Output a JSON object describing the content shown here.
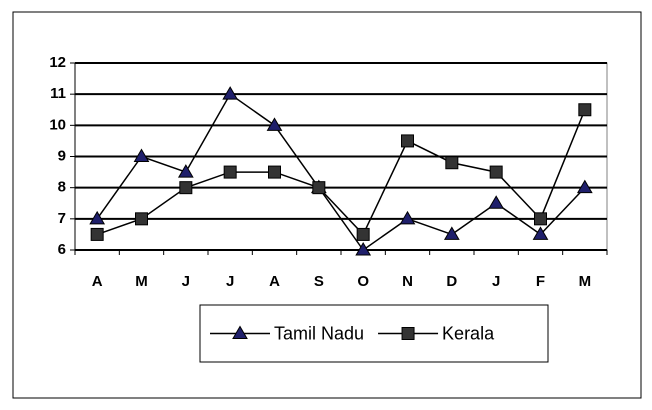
{
  "chart_data": {
    "type": "line",
    "categories": [
      "A",
      "M",
      "J",
      "J",
      "A",
      "S",
      "O",
      "N",
      "D",
      "J",
      "F",
      "M"
    ],
    "series": [
      {
        "name": "Tamil Nadu",
        "color": "#000000",
        "marker": "triangle",
        "marker_color": "#1f1f6b",
        "values": [
          7,
          9,
          8.5,
          11,
          10,
          8,
          6,
          7,
          6.5,
          7.5,
          6.5,
          8
        ]
      },
      {
        "name": "Kerala",
        "color": "#000000",
        "marker": "square",
        "marker_color": "#333333",
        "values": [
          6.5,
          7,
          8,
          8.5,
          8.5,
          8,
          6.5,
          9.5,
          8.8,
          8.5,
          7,
          10.5
        ]
      }
    ],
    "ylim": [
      6,
      12
    ],
    "yticks": [
      6,
      7,
      8,
      9,
      10,
      11,
      12
    ],
    "grid": true,
    "legend": "bottom"
  }
}
